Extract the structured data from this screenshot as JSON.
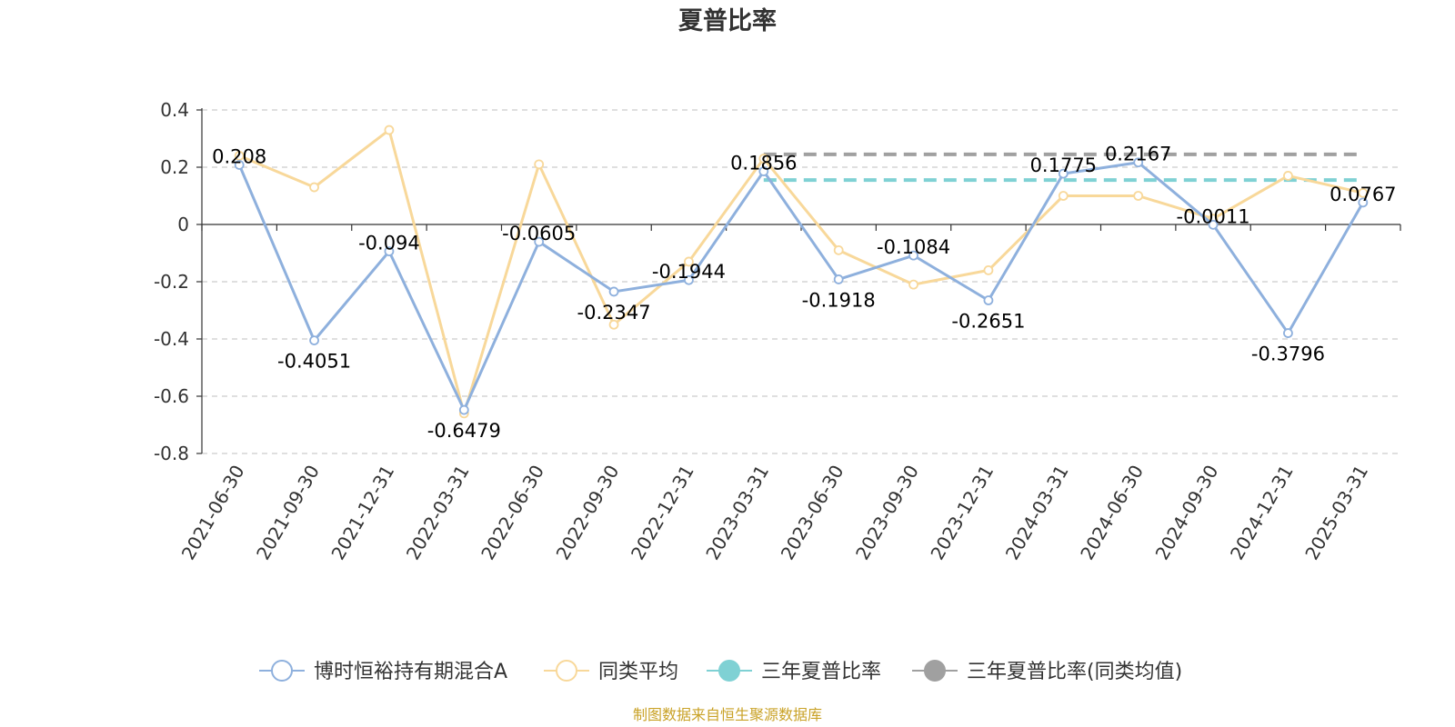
{
  "chart_data": {
    "type": "line",
    "title": "夏普比率",
    "x": [
      "2021-06-30",
      "2021-09-30",
      "2021-12-31",
      "2022-03-31",
      "2022-06-30",
      "2022-09-30",
      "2022-12-31",
      "2023-03-31",
      "2023-06-30",
      "2023-09-30",
      "2023-12-31",
      "2024-03-31",
      "2024-06-30",
      "2024-09-30",
      "2024-12-31",
      "2025-03-31"
    ],
    "ylim": [
      -0.8,
      0.4
    ],
    "yticks": [
      0.4,
      0.2,
      0,
      -0.2,
      -0.4,
      -0.6,
      -0.8
    ],
    "ytick_labels": [
      "0.4",
      "0.2",
      "0",
      "-0.2",
      "-0.4",
      "-0.6",
      "-0.8"
    ],
    "grid": true,
    "legend_position": "bottom",
    "series": [
      {
        "name": "博时恒裕持有期混合A",
        "color": "#8eb0dd",
        "values": [
          0.208,
          -0.4051,
          -0.094,
          -0.6479,
          -0.0605,
          -0.2347,
          -0.1944,
          0.1856,
          -0.1918,
          -0.1084,
          -0.2651,
          0.1775,
          0.2167,
          -0.0011,
          -0.3796,
          0.0767
        ],
        "labels": [
          "0.208",
          "-0.4051",
          "-0.094",
          "-0.6479",
          "-0.0605",
          "-0.2347",
          "-0.1944",
          "0.1856",
          "-0.1918",
          "-0.1084",
          "-0.2651",
          "0.1775",
          "0.2167",
          "-0.0011",
          "-0.3796",
          "0.0767"
        ]
      },
      {
        "name": "同类平均",
        "color": "#f8d89a",
        "values": [
          0.24,
          0.13,
          0.33,
          -0.66,
          0.21,
          -0.35,
          -0.13,
          0.23,
          -0.09,
          -0.21,
          -0.16,
          0.1,
          0.1,
          0.02,
          0.17,
          0.11
        ]
      }
    ],
    "reference_lines": [
      {
        "name": "三年夏普比率",
        "color": "#7fd1d4",
        "value": 0.155,
        "from": "2023-03-31",
        "to": "2025-03-31"
      },
      {
        "name": "三年夏普比率(同类均值)",
        "color": "#a0a0a0",
        "value": 0.245,
        "from": "2023-03-31",
        "to": "2025-03-31"
      }
    ],
    "source": "制图数据来自恒生聚源数据库"
  }
}
